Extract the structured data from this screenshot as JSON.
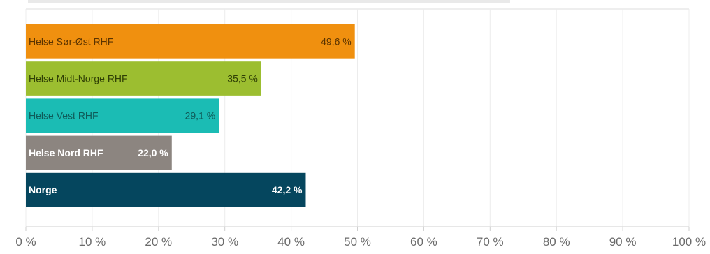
{
  "chart_data": {
    "type": "bar",
    "orientation": "horizontal",
    "title": "",
    "xlabel": "",
    "ylabel": "",
    "xlim": [
      0,
      100
    ],
    "grid": true,
    "legend": "none",
    "categories": [
      "Helse Sør-Øst RHF",
      "Helse Midt-Norge RHF",
      "Helse Vest RHF",
      "Helse Nord RHF",
      "Norge"
    ],
    "values": [
      49.6,
      35.5,
      29.1,
      22.0,
      42.2
    ],
    "value_labels": [
      "49,6 %",
      "35,5 %",
      "29,1 %",
      "22,0 %",
      "42,2 %"
    ],
    "colors": [
      "#f0900f",
      "#9cbe30",
      "#1bbcb4",
      "#8c8580",
      "#05465e"
    ],
    "label_colors": [
      "#5a3300",
      "#2f3f05",
      "#0f5a58",
      "#ffffff",
      "#ffffff"
    ],
    "bold_labels": [
      false,
      false,
      false,
      true,
      true
    ],
    "tick_labels": [
      "0 %",
      "10 %",
      "20 %",
      "30 %",
      "40 %",
      "50 %",
      "60 %",
      "70 %",
      "80 %",
      "90 %",
      "100 %"
    ]
  }
}
